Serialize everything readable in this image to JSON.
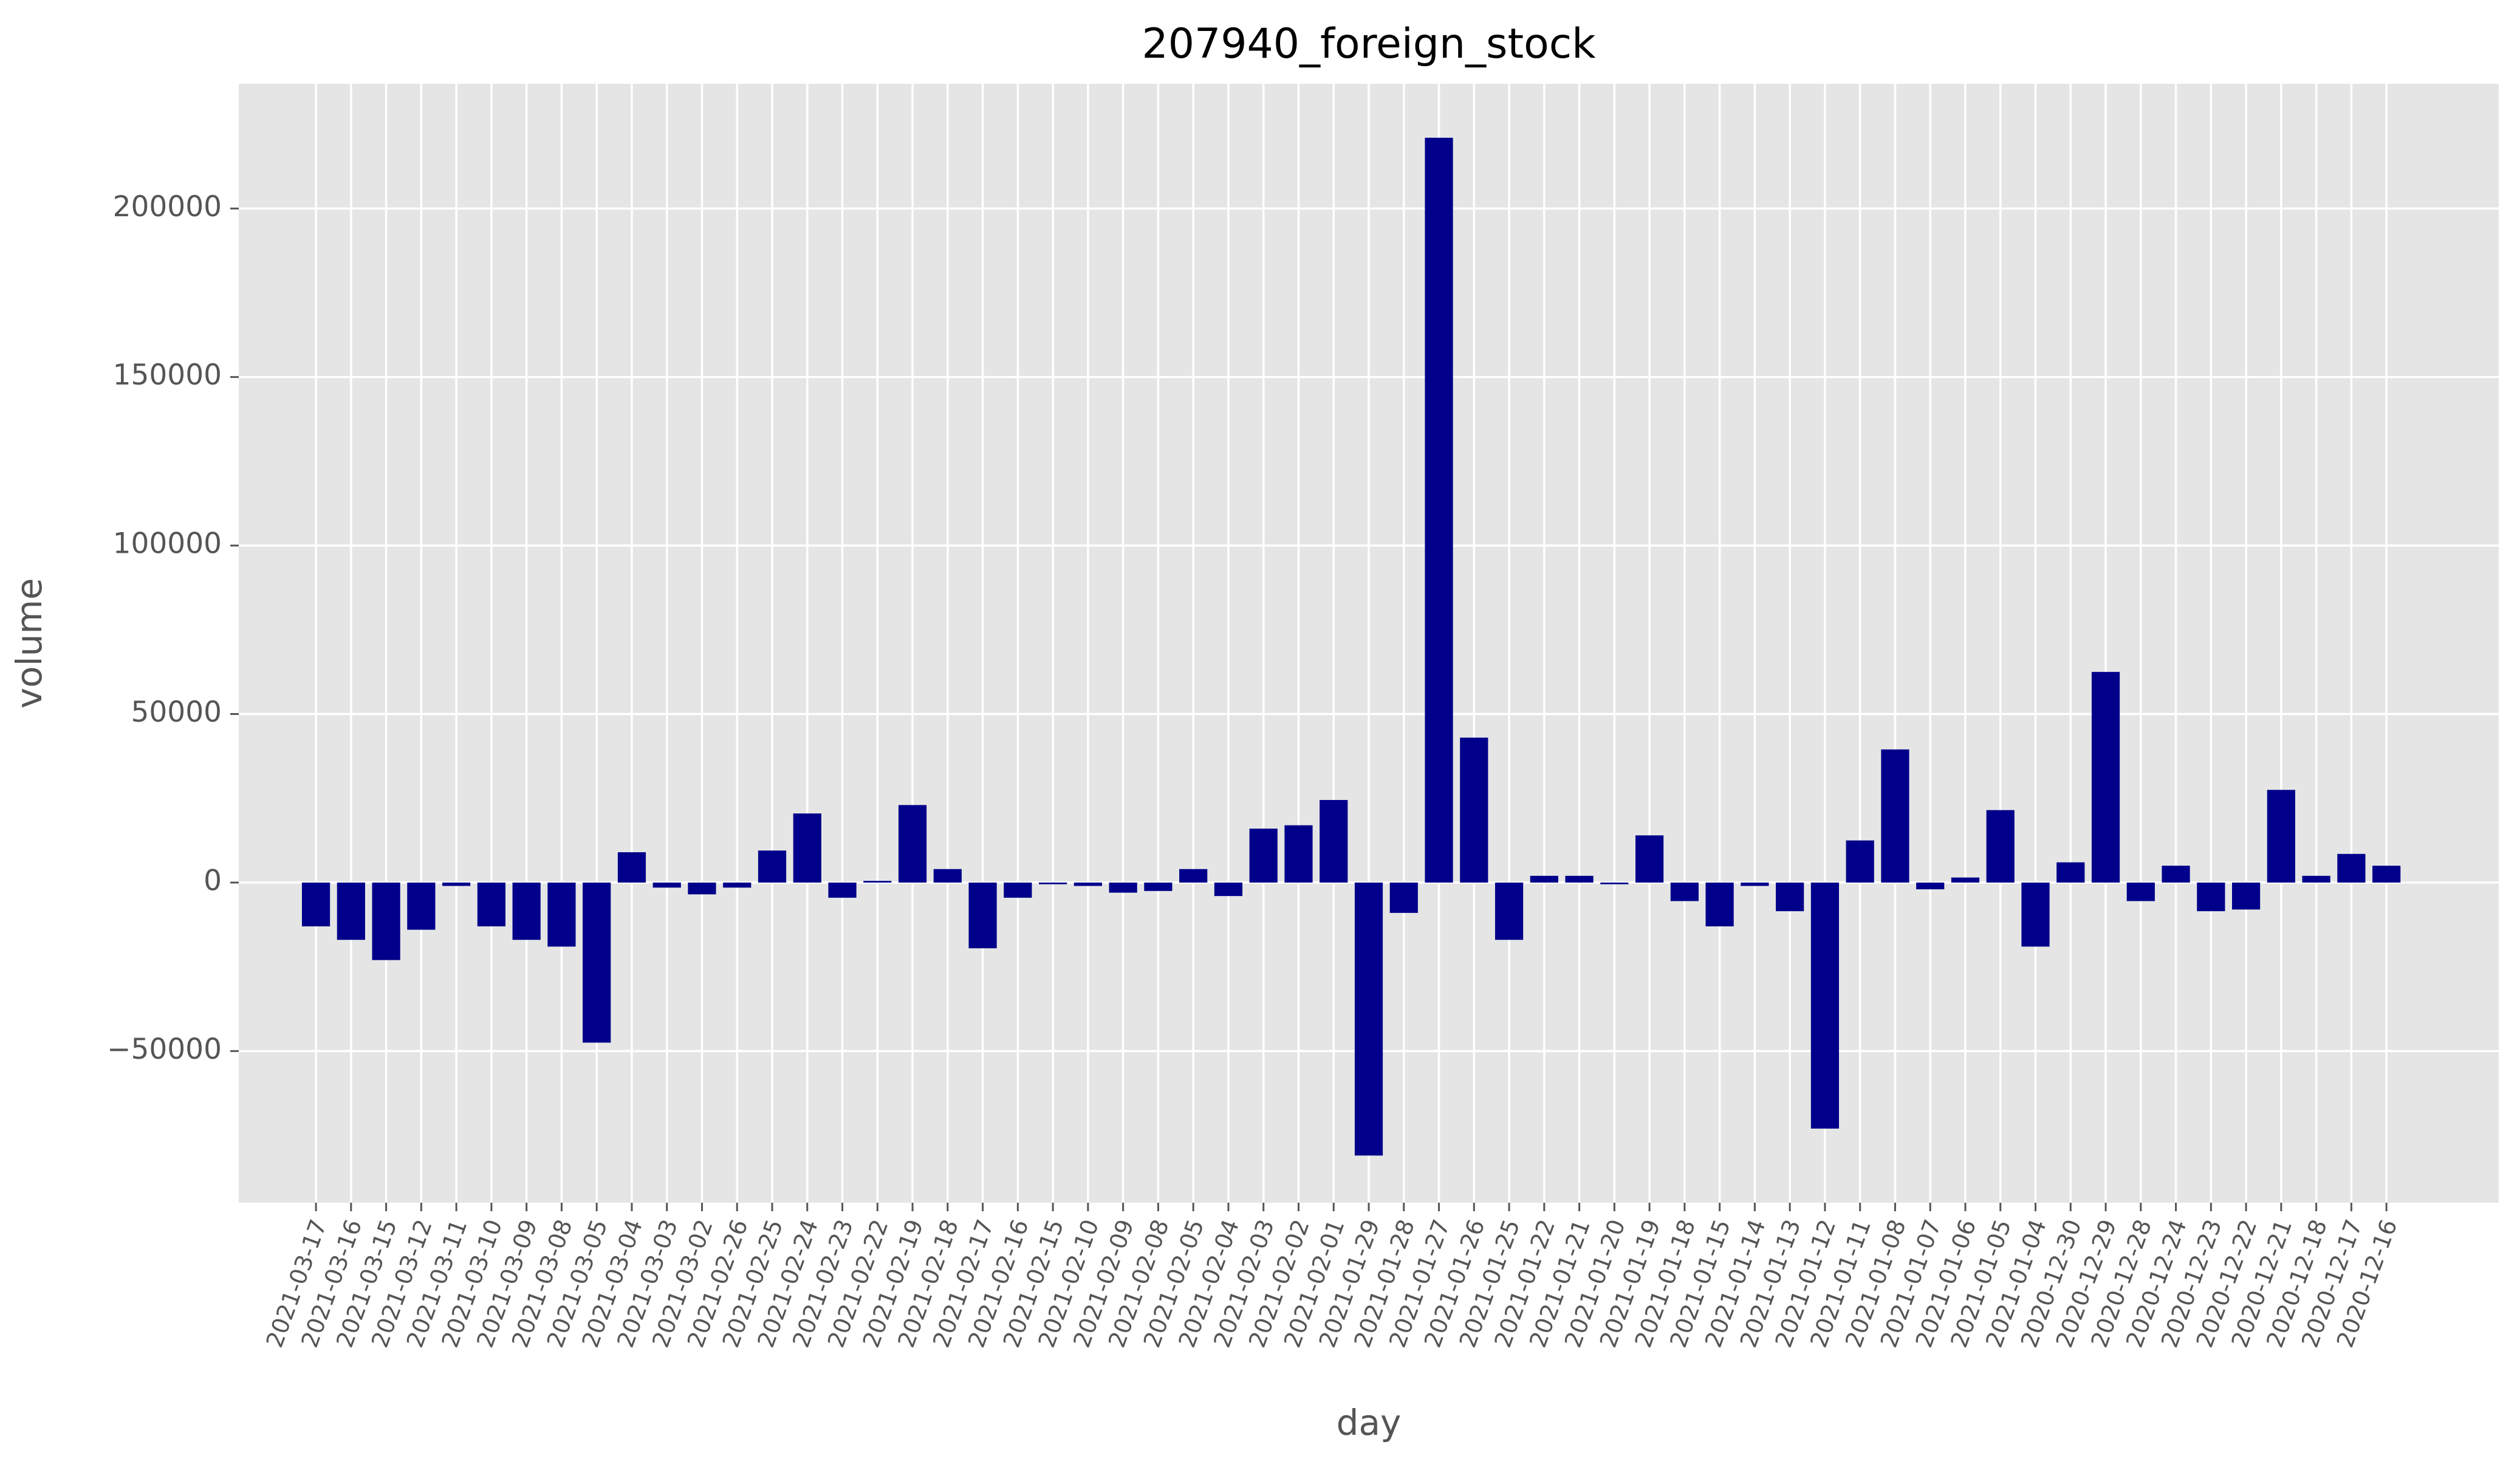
{
  "chart_data": {
    "type": "bar",
    "title": "207940_foreign_stock",
    "xlabel": "day",
    "ylabel": "volume",
    "ylim": [
      -95000,
      237000
    ],
    "yticks": [
      -50000,
      0,
      50000,
      100000,
      150000,
      200000
    ],
    "ytick_labels": [
      "−50000",
      "0",
      "50000",
      "100000",
      "150000",
      "200000"
    ],
    "grid": true,
    "legend": "none",
    "bar_color": "#00008b",
    "background_color": "#e5e5e5",
    "grid_color": "#ffffff",
    "categories": [
      "2021-03-17",
      "2021-03-16",
      "2021-03-15",
      "2021-03-12",
      "2021-03-11",
      "2021-03-10",
      "2021-03-09",
      "2021-03-08",
      "2021-03-05",
      "2021-03-04",
      "2021-03-03",
      "2021-03-02",
      "2021-02-26",
      "2021-02-25",
      "2021-02-24",
      "2021-02-23",
      "2021-02-22",
      "2021-02-19",
      "2021-02-18",
      "2021-02-17",
      "2021-02-16",
      "2021-02-15",
      "2021-02-10",
      "2021-02-09",
      "2021-02-08",
      "2021-02-05",
      "2021-02-04",
      "2021-02-03",
      "2021-02-02",
      "2021-02-01",
      "2021-01-29",
      "2021-01-28",
      "2021-01-27",
      "2021-01-26",
      "2021-01-25",
      "2021-01-22",
      "2021-01-21",
      "2021-01-20",
      "2021-01-19",
      "2021-01-18",
      "2021-01-15",
      "2021-01-14",
      "2021-01-13",
      "2021-01-12",
      "2021-01-11",
      "2021-01-08",
      "2021-01-07",
      "2021-01-06",
      "2021-01-05",
      "2021-01-04",
      "2020-12-30",
      "2020-12-29",
      "2020-12-28",
      "2020-12-24",
      "2020-12-23",
      "2020-12-22",
      "2020-12-21",
      "2020-12-18",
      "2020-12-17",
      "2020-12-16"
    ],
    "values": [
      -13000,
      -17000,
      -23000,
      -14000,
      -1000,
      -13000,
      -17000,
      -19000,
      -47500,
      9000,
      -1500,
      -3500,
      -1500,
      9500,
      20500,
      -4500,
      500,
      23000,
      4000,
      -19500,
      -4500,
      -500,
      -1000,
      -3000,
      -2500,
      4000,
      -4000,
      16000,
      17000,
      24500,
      -81000,
      -9000,
      221000,
      43000,
      -17000,
      2000,
      2000,
      -500,
      14000,
      -5500,
      -13000,
      -1000,
      -8500,
      -73000,
      12500,
      39500,
      -2000,
      1500,
      21500,
      -19000,
      6000,
      62500,
      -5500,
      5000,
      -8500,
      -8000,
      27500,
      2000,
      8500,
      5000
    ]
  }
}
